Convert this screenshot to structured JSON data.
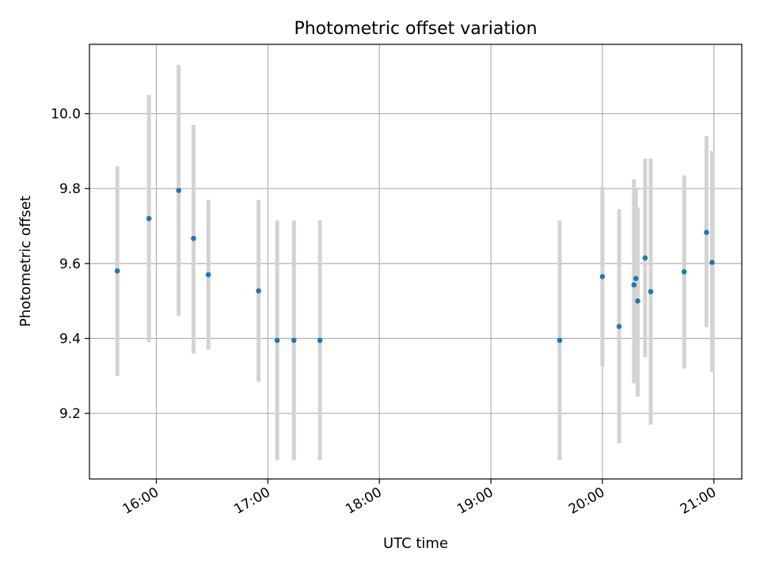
{
  "chart_data": {
    "type": "scatter",
    "title": "Photometric offset variation",
    "xlabel": "UTC time",
    "ylabel": "Photometric offset",
    "x_unit": "UTC time (HH:MM)",
    "xlim": [
      "15:24",
      "21:15"
    ],
    "ylim": [
      9.025,
      10.185
    ],
    "x_ticks": [
      "16:00",
      "17:00",
      "18:00",
      "19:00",
      "20:00",
      "21:00"
    ],
    "y_ticks": [
      "9.2",
      "9.4",
      "9.6",
      "9.8",
      "10.0"
    ],
    "grid": true,
    "marker_color": "#1f77b4",
    "errorbar_color": "#d3d3d3",
    "points": [
      {
        "x": "15:39",
        "y": 9.58,
        "ylow": 9.3,
        "yhigh": 9.86
      },
      {
        "x": "15:56",
        "y": 9.72,
        "ylow": 9.39,
        "yhigh": 10.05
      },
      {
        "x": "16:12",
        "y": 9.795,
        "ylow": 9.46,
        "yhigh": 10.13
      },
      {
        "x": "16:20",
        "y": 9.667,
        "ylow": 9.36,
        "yhigh": 9.97
      },
      {
        "x": "16:28",
        "y": 9.57,
        "ylow": 9.37,
        "yhigh": 9.77
      },
      {
        "x": "16:55",
        "y": 9.527,
        "ylow": 9.285,
        "yhigh": 9.77
      },
      {
        "x": "17:05",
        "y": 9.395,
        "ylow": 9.075,
        "yhigh": 9.715
      },
      {
        "x": "17:14",
        "y": 9.395,
        "ylow": 9.075,
        "yhigh": 9.715
      },
      {
        "x": "17:28",
        "y": 9.395,
        "ylow": 9.075,
        "yhigh": 9.715
      },
      {
        "x": "19:37",
        "y": 9.395,
        "ylow": 9.075,
        "yhigh": 9.715
      },
      {
        "x": "20:00",
        "y": 9.565,
        "ylow": 9.325,
        "yhigh": 9.805
      },
      {
        "x": "20:09",
        "y": 9.432,
        "ylow": 9.12,
        "yhigh": 9.745
      },
      {
        "x": "20:17",
        "y": 9.543,
        "ylow": 9.28,
        "yhigh": 9.825
      },
      {
        "x": "20:18",
        "y": 9.56,
        "ylow": 9.32,
        "yhigh": 9.8
      },
      {
        "x": "20:19",
        "y": 9.5,
        "ylow": 9.245,
        "yhigh": 9.75
      },
      {
        "x": "20:23",
        "y": 9.615,
        "ylow": 9.35,
        "yhigh": 9.88
      },
      {
        "x": "20:26",
        "y": 9.525,
        "ylow": 9.17,
        "yhigh": 9.88
      },
      {
        "x": "20:44",
        "y": 9.578,
        "ylow": 9.32,
        "yhigh": 9.835
      },
      {
        "x": "20:56",
        "y": 9.683,
        "ylow": 9.43,
        "yhigh": 9.94
      },
      {
        "x": "20:59",
        "y": 9.603,
        "ylow": 9.31,
        "yhigh": 9.9
      }
    ]
  }
}
